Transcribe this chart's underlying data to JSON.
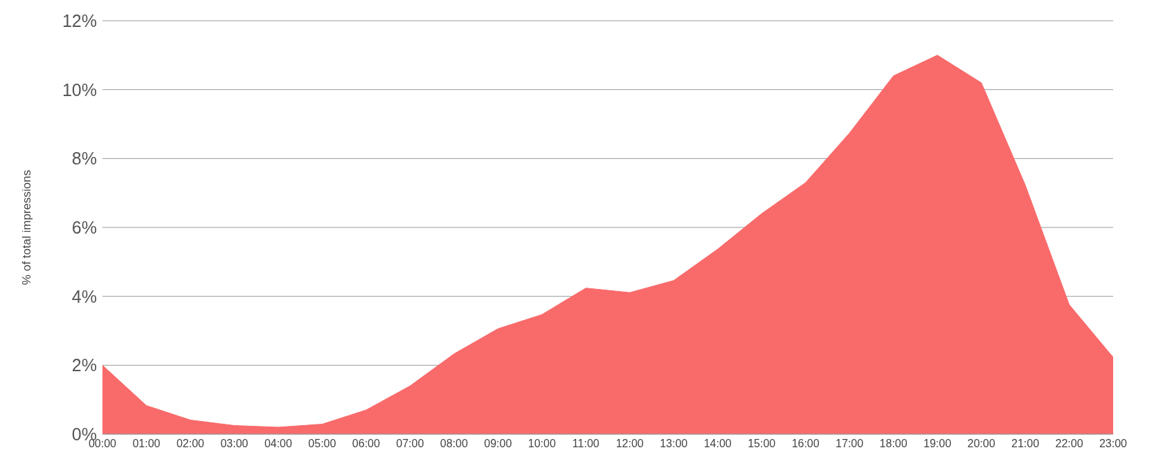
{
  "chart_data": {
    "type": "area",
    "ylabel": "% of total impressions",
    "categories": [
      "00:00",
      "01:00",
      "02:00",
      "03:00",
      "04:00",
      "05:00",
      "06:00",
      "07:00",
      "08:00",
      "09:00",
      "10:00",
      "11:00",
      "12:00",
      "13:00",
      "14:00",
      "15:00",
      "16:00",
      "17:00",
      "18:00",
      "19:00",
      "20:00",
      "21:00",
      "22:00",
      "23:00"
    ],
    "series": [
      {
        "color": "#f96a6a",
        "values": [
          2.0,
          0.83,
          0.41,
          0.25,
          0.2,
          0.29,
          0.7,
          1.4,
          2.33,
          3.06,
          3.47,
          4.24,
          4.11,
          4.46,
          5.37,
          6.4,
          7.3,
          8.74,
          10.4,
          11.0,
          10.2,
          7.23,
          3.76,
          2.23
        ]
      }
    ],
    "ylim": [
      0,
      12
    ],
    "yticks": [
      {
        "value": 0,
        "label": "0%"
      },
      {
        "value": 2,
        "label": "2%"
      },
      {
        "value": 4,
        "label": "4%"
      },
      {
        "value": 6,
        "label": "6%"
      },
      {
        "value": 8,
        "label": "8%"
      },
      {
        "value": 10,
        "label": "10%"
      },
      {
        "value": 12,
        "label": "12%"
      }
    ],
    "grid": "y",
    "legend": false
  }
}
